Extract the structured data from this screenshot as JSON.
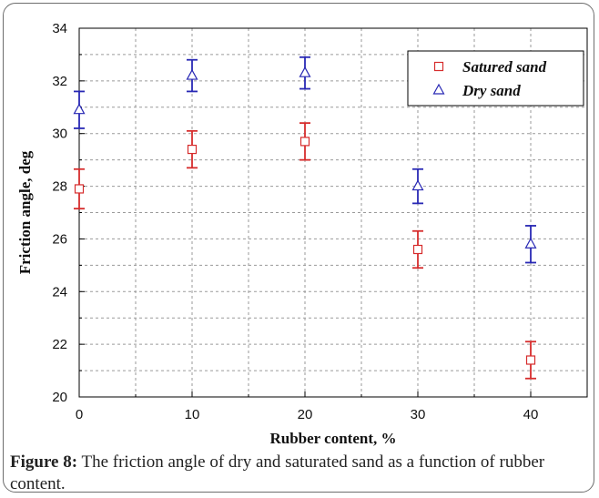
{
  "figure": {
    "caption_label": "Figure 8:",
    "caption_text": "The friction angle of dry and saturated sand as a function of rubber content."
  },
  "chart_data": {
    "type": "scatter",
    "xlabel": "Rubber content, %",
    "ylabel": "Friction angle, deg",
    "xlim": [
      0,
      45
    ],
    "ylim": [
      20,
      34
    ],
    "x_ticks": [
      0,
      10,
      20,
      30,
      40
    ],
    "y_ticks": [
      20,
      22,
      24,
      26,
      28,
      30,
      32,
      34
    ],
    "grid": true,
    "legend_position": "top-right",
    "series": [
      {
        "name": "Satured sand",
        "marker": "square",
        "color": "#d62c2c",
        "x": [
          0,
          10,
          20,
          30,
          40
        ],
        "y": [
          27.9,
          29.4,
          29.7,
          25.6,
          21.4
        ],
        "err": [
          0.75,
          0.7,
          0.7,
          0.7,
          0.7
        ]
      },
      {
        "name": "Dry sand",
        "marker": "triangle",
        "color": "#2828b4",
        "x": [
          0,
          10,
          20,
          30,
          40
        ],
        "y": [
          30.9,
          32.2,
          32.3,
          28.0,
          25.8
        ],
        "err": [
          0.7,
          0.6,
          0.6,
          0.65,
          0.7
        ]
      }
    ]
  }
}
